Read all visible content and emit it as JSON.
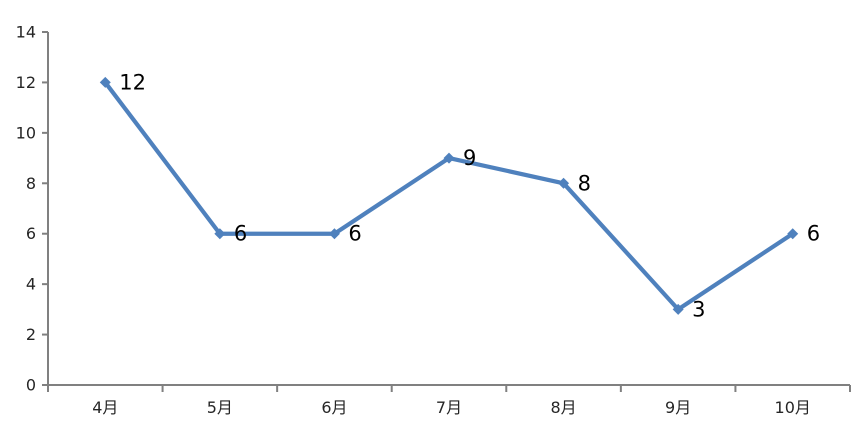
{
  "chart_data": {
    "type": "line",
    "title": "",
    "xlabel": "",
    "ylabel": "",
    "categories": [
      "4月",
      "5月",
      "6月",
      "7月",
      "8月",
      "9月",
      "10月"
    ],
    "series": [
      {
        "name": "",
        "values": [
          12,
          6,
          6,
          9,
          8,
          3,
          6
        ],
        "data_labels": [
          "12",
          "6",
          "6",
          "9",
          "8",
          "3",
          "6"
        ]
      }
    ],
    "ylim": [
      0,
      14
    ],
    "ytick_step": 2,
    "ytick_labels": [
      "0",
      "2",
      "4",
      "6",
      "8",
      "10",
      "12",
      "14"
    ],
    "grid": false,
    "legend_position": "none",
    "marker_shape": "diamond",
    "colors": {
      "line": "#4F81BD",
      "marker": "#4F81BD",
      "axis": "#808080",
      "tick_label": "#262626",
      "data_label": "#000000",
      "background": "#FFFFFF"
    }
  }
}
